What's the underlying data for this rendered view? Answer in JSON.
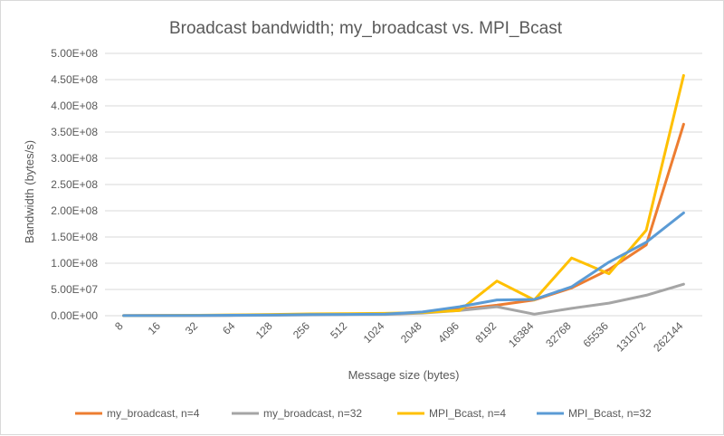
{
  "chart_data": {
    "type": "line",
    "title": "Broadcast bandwidth; my_broadcast vs. MPI_Bcast",
    "xlabel": "Message size (bytes)",
    "ylabel": "Bandwidth (bytes/s)",
    "categories": [
      "8",
      "16",
      "32",
      "64",
      "128",
      "256",
      "512",
      "1024",
      "2048",
      "4096",
      "8192",
      "16384",
      "32768",
      "65536",
      "131072",
      "262144"
    ],
    "ylim": [
      0,
      500000000
    ],
    "y_ticks": [
      "0.00E+00",
      "5.00E+07",
      "1.00E+08",
      "1.50E+08",
      "2.00E+08",
      "2.50E+08",
      "3.00E+08",
      "3.50E+08",
      "4.00E+08",
      "4.50E+08",
      "5.00E+08"
    ],
    "grid": true,
    "legend_position": "bottom",
    "series": [
      {
        "name": "my_broadcast, n=4",
        "color": "#ED7D31",
        "values": [
          150000,
          300000,
          500000,
          1000000,
          1500000,
          2500000,
          3000000,
          3500000,
          6000000,
          12000000,
          20000000,
          30000000,
          53000000,
          88000000,
          135000000,
          365000000
        ]
      },
      {
        "name": "my_broadcast, n=32",
        "color": "#A5A5A5",
        "values": [
          50000,
          100000,
          200000,
          400000,
          800000,
          1500000,
          2000000,
          2500000,
          5000000,
          10000000,
          17000000,
          3000000,
          14000000,
          24000000,
          39000000,
          60000000
        ]
      },
      {
        "name": "MPI_Bcast, n=4",
        "color": "#FFC000",
        "values": [
          200000,
          400000,
          800000,
          1500000,
          2500000,
          3500000,
          4000000,
          4500000,
          6000000,
          10000000,
          66000000,
          30000000,
          110000000,
          80000000,
          163000000,
          458000000
        ]
      },
      {
        "name": "MPI_Bcast, n=32",
        "color": "#5B9BD5",
        "values": [
          100000,
          200000,
          400000,
          800000,
          1200000,
          2000000,
          2500000,
          3000000,
          7000000,
          17000000,
          30000000,
          31000000,
          55000000,
          102000000,
          140000000,
          196000000
        ]
      }
    ]
  }
}
